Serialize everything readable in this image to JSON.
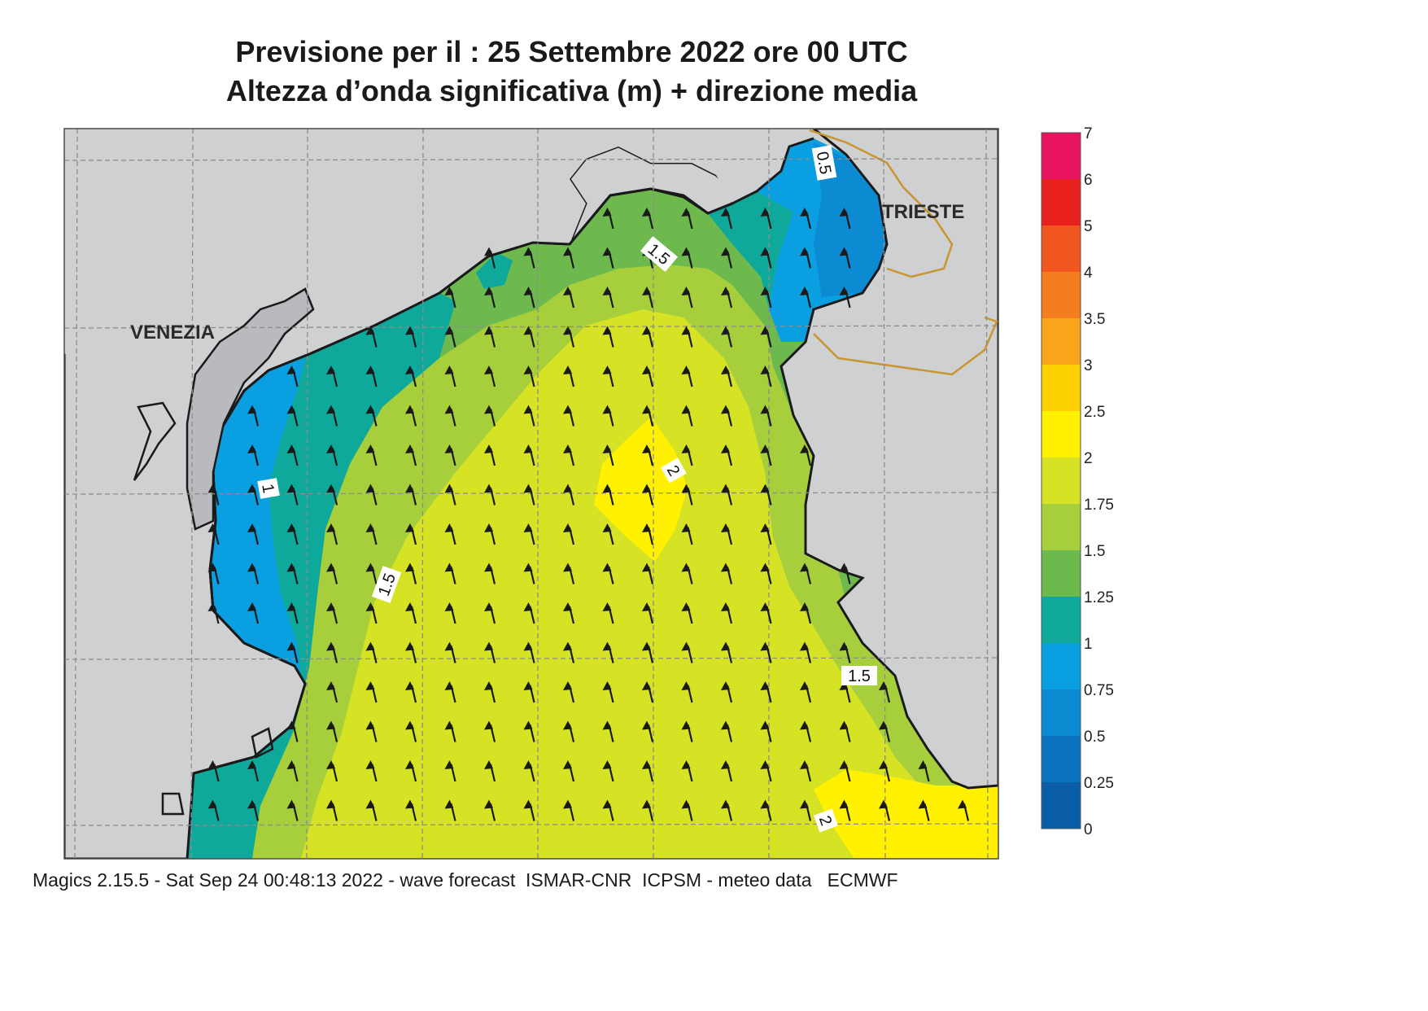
{
  "title": {
    "line1": "Previsione per il  :  25 Settembre 2022   ore 00 UTC",
    "line2": "Altezza d’onda significativa (m) + direzione media"
  },
  "map_labels": {
    "venezia": "VENEZIA",
    "trieste": "TRIESTE"
  },
  "contour_labels": [
    {
      "text": "0.5",
      "location": "near Trieste, north-east coast"
    },
    {
      "text": "1.5",
      "location": "north coast"
    },
    {
      "text": "1",
      "location": "off Venezia lagoon"
    },
    {
      "text": "2",
      "location": "central basin maximum"
    },
    {
      "text": "1.5",
      "location": "west-central basin"
    },
    {
      "text": "1.5",
      "location": "Istrian coast"
    },
    {
      "text": "2",
      "location": "south-east corner"
    }
  ],
  "legend": {
    "ticks": [
      "7",
      "6",
      "5",
      "4",
      "3.5",
      "3",
      "2.5",
      "2",
      "1.75",
      "1.5",
      "1.25",
      "1",
      "0.75",
      "0.5",
      "0.25",
      "0"
    ],
    "colors": [
      "#e8145f",
      "#e8201e",
      "#f2561f",
      "#f47d20",
      "#f9a51b",
      "#fdd200",
      "#fff100",
      "#d6e224",
      "#a7cf3b",
      "#6db94e",
      "#0fa99c",
      "#0a9fe0",
      "#0c8ad2",
      "#0a73c0",
      "#0a5ea6"
    ]
  },
  "colors": {
    "land": "#cfd0d2",
    "coast": "#1a1a1a",
    "grid": "#8c8c8c",
    "border": "#c8952f",
    "arrow": "#1a1a1a"
  },
  "arrow_direction": "north-north-west",
  "footer": "Magics 2.15.5 - Sat Sep 24 00:48:13 2022 - wave forecast  ISMAR-CNR  ICPSM - meteo data   ECMWF"
}
